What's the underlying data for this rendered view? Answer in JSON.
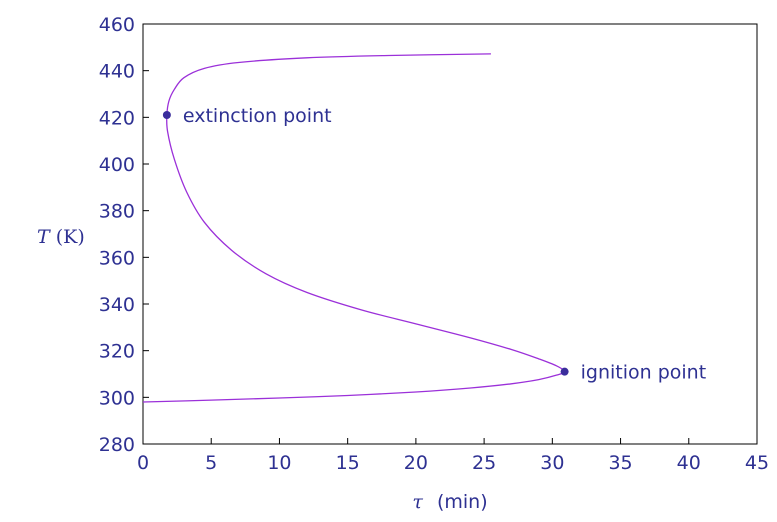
{
  "chart_data": {
    "type": "line",
    "title": "",
    "xlabel_symbol": "τ",
    "xlabel_unit": "(min)",
    "ylabel_symbol": "T",
    "ylabel_unit": "(K)",
    "xlim": [
      0,
      45
    ],
    "ylim": [
      280,
      460
    ],
    "xticks": [
      0,
      5,
      10,
      15,
      20,
      25,
      30,
      35,
      40,
      45
    ],
    "yticks": [
      280,
      300,
      320,
      340,
      360,
      380,
      400,
      420,
      440,
      460
    ],
    "grid": false,
    "legend": "none",
    "colors": {
      "axis": "#000000",
      "text": "#2e3192",
      "curve": "#9b30d9",
      "point": "#3a2d9c"
    },
    "series": [
      {
        "x": [
          0.0,
          5.0,
          10.0,
          15.0,
          20.0,
          24.0,
          27.0,
          29.0,
          30.3,
          30.9,
          30.3,
          29.0,
          27.0,
          24.0,
          20.0,
          16.0,
          12.0,
          9.0,
          6.5,
          4.5,
          3.2,
          2.3,
          1.8,
          1.75,
          1.9,
          2.3,
          3.0,
          4.5,
          7.0,
          12.0,
          18.0,
          25.5
        ],
        "y": [
          298,
          298.8,
          299.7,
          300.8,
          302.3,
          304.0,
          305.8,
          307.6,
          309.5,
          311,
          313.5,
          316.5,
          320.5,
          325.5,
          331.5,
          337.5,
          345,
          353,
          363,
          375,
          388,
          402,
          414,
          421,
          427,
          432,
          437,
          441,
          443.5,
          445.5,
          446.5,
          447.2
        ]
      }
    ],
    "annotations": [
      {
        "text": "extinction point",
        "x": 1.75,
        "y": 421
      },
      {
        "text": "ignition point",
        "x": 30.9,
        "y": 311
      }
    ]
  }
}
